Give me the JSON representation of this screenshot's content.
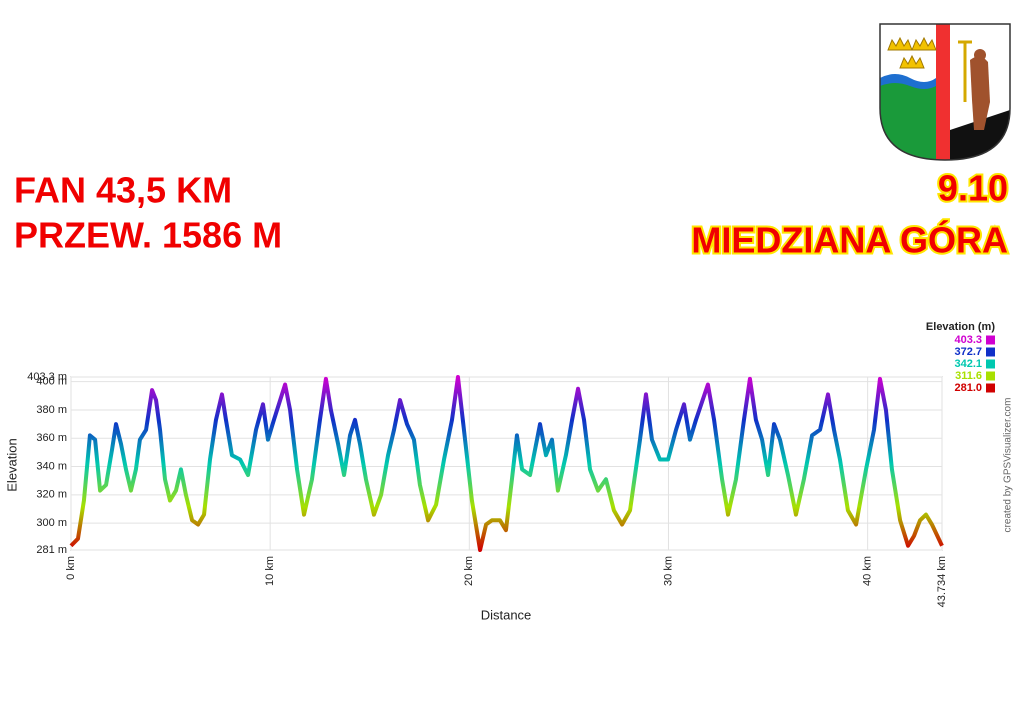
{
  "header": {
    "left_lines": [
      "FAN 43,5 KM",
      "PRZEW. 1586 M"
    ],
    "right_lines": [
      "9.10",
      "MIEDZIANA GÓRA"
    ]
  },
  "chart_data": {
    "type": "line",
    "x_label": "Distance",
    "y_label": "Elevation",
    "credit": "created by GPSVisualizer.com",
    "xlim": [
      0,
      43.734
    ],
    "ylim": [
      281,
      403.3
    ],
    "xticks": [
      {
        "value": 0,
        "label": "0 km"
      },
      {
        "value": 10,
        "label": "10 km"
      },
      {
        "value": 20,
        "label": "20 km"
      },
      {
        "value": 30,
        "label": "30 km"
      },
      {
        "value": 40,
        "label": "40 km"
      },
      {
        "value": 43.734,
        "label": "43.734 km"
      }
    ],
    "yticks": [
      {
        "value": 281,
        "label": "281 m"
      },
      {
        "value": 300,
        "label": "300 m"
      },
      {
        "value": 320,
        "label": "320 m"
      },
      {
        "value": 340,
        "label": "340 m"
      },
      {
        "value": 360,
        "label": "360 m"
      },
      {
        "value": 380,
        "label": "380 m"
      },
      {
        "value": 400,
        "label": "400 m"
      },
      {
        "value": 403.3,
        "label": "403.3 m"
      }
    ],
    "grid": true,
    "color_scale": {
      "title": "Elevation (m)",
      "stops": [
        {
          "value": 403.3,
          "label": "403.3",
          "color": "#d000d0"
        },
        {
          "value": 372.7,
          "label": "372.7",
          "color": "#1030c8"
        },
        {
          "value": 342.1,
          "label": "342.1",
          "color": "#00c8b0"
        },
        {
          "value": 311.6,
          "label": "311.6",
          "color": "#a8e000"
        },
        {
          "value": 281.0,
          "label": "281.0",
          "color": "#d00000"
        }
      ]
    },
    "x": [
      0,
      0.35,
      0.65,
      0.95,
      1.21,
      1.46,
      1.76,
      2.06,
      2.26,
      2.51,
      2.76,
      3.01,
      3.26,
      3.46,
      3.77,
      4.07,
      4.27,
      4.47,
      4.72,
      4.97,
      5.27,
      5.52,
      5.77,
      6.08,
      6.38,
      6.68,
      6.98,
      7.28,
      7.58,
      7.78,
      8.08,
      8.49,
      8.89,
      9.29,
      9.64,
      9.89,
      10.19,
      10.75,
      11.0,
      11.35,
      11.7,
      12.1,
      12.5,
      12.8,
      13.05,
      13.41,
      13.71,
      14.01,
      14.26,
      14.51,
      14.81,
      15.21,
      15.57,
      15.92,
      16.22,
      16.52,
      16.87,
      17.22,
      17.52,
      17.93,
      18.33,
      18.73,
      19.13,
      19.43,
      19.73,
      20.13,
      20.54,
      20.84,
      21.14,
      21.54,
      21.84,
      22.14,
      22.39,
      22.65,
      23.05,
      23.55,
      23.85,
      24.15,
      24.45,
      24.85,
      25.16,
      25.46,
      25.76,
      26.06,
      26.46,
      26.86,
      27.26,
      27.67,
      28.07,
      28.57,
      28.87,
      29.17,
      29.57,
      29.98,
      30.38,
      30.78,
      31.08,
      31.38,
      31.98,
      32.29,
      32.69,
      32.99,
      33.39,
      33.79,
      34.09,
      34.39,
      34.7,
      35.0,
      35.3,
      35.6,
      36.0,
      36.4,
      36.8,
      37.21,
      37.61,
      38.01,
      38.31,
      38.61,
      39.01,
      39.42,
      39.92,
      40.32,
      40.62,
      40.92,
      41.22,
      41.63,
      42.03,
      42.33,
      42.63,
      42.93,
      43.23,
      43.734
    ],
    "values": [
      284,
      289,
      316,
      362,
      359,
      323,
      327,
      352,
      370,
      356,
      338,
      323,
      338,
      359,
      366,
      394,
      387,
      366,
      331,
      316,
      323,
      338,
      320,
      302,
      299,
      306,
      345,
      373,
      391,
      373,
      348,
      345,
      334,
      366,
      384,
      359,
      373,
      398,
      380,
      338,
      306,
      331,
      373,
      402,
      380,
      356,
      334,
      362,
      373,
      356,
      331,
      306,
      320,
      348,
      366,
      387,
      370,
      359,
      327,
      302,
      313,
      345,
      373,
      403.3,
      366,
      316,
      281,
      299,
      302,
      302,
      295,
      331,
      362,
      338,
      334,
      370,
      348,
      359,
      323,
      348,
      373,
      395,
      373,
      338,
      323,
      331,
      309,
      299,
      309,
      359,
      391,
      359,
      345,
      345,
      366,
      384,
      359,
      373,
      398,
      373,
      331,
      306,
      331,
      373,
      402,
      373,
      359,
      334,
      370,
      359,
      334,
      306,
      331,
      362,
      366,
      391,
      366,
      345,
      309,
      299,
      338,
      366,
      402,
      380,
      338,
      302,
      284,
      291,
      302,
      306,
      299,
      284
    ]
  }
}
